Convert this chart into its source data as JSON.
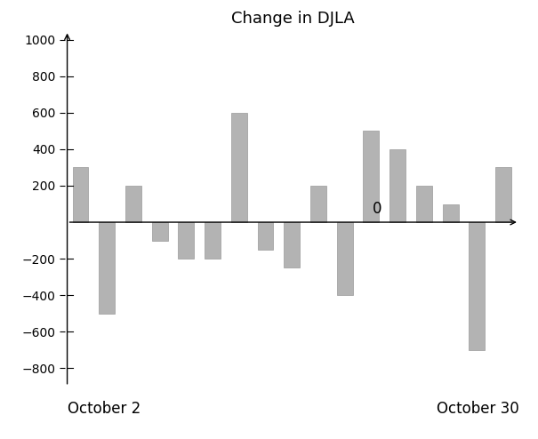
{
  "title": "Change in DJLA",
  "values": [
    300,
    -500,
    200,
    -100,
    -200,
    -200,
    600,
    -150,
    -250,
    200,
    -400,
    500,
    400,
    200,
    100,
    -700,
    300
  ],
  "bar_color": "#b3b3b3",
  "bar_edge_color": "#999999",
  "ylim": [
    -900,
    1050
  ],
  "yticks": [
    -800,
    -600,
    -400,
    -200,
    200,
    400,
    600,
    800,
    1000
  ],
  "xlabel_left": "October 2",
  "xlabel_right": "October 30",
  "zero_label": "0",
  "background_color": "#ffffff",
  "title_fontsize": 13,
  "label_fontsize": 12
}
